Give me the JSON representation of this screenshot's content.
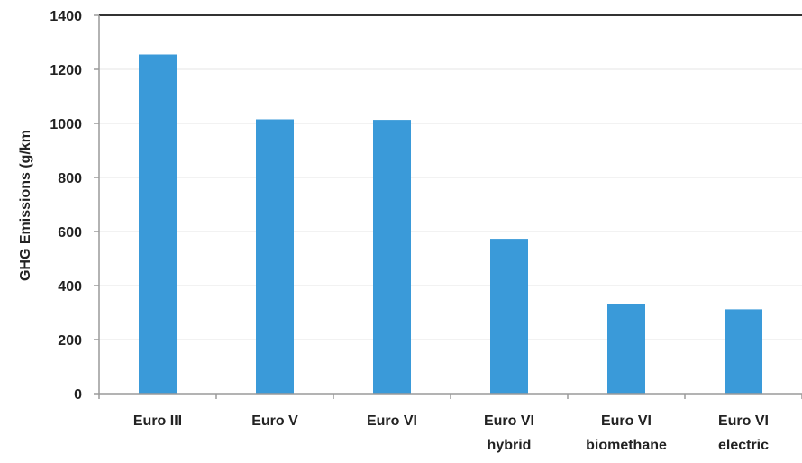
{
  "chart_data": {
    "type": "bar",
    "categories": [
      [
        "Euro III"
      ],
      [
        "Euro V"
      ],
      [
        "Euro VI"
      ],
      [
        "Euro VI",
        "hybrid"
      ],
      [
        "Euro VI",
        "biomethane"
      ],
      [
        "Euro VI",
        "electric"
      ]
    ],
    "values": [
      1255,
      1015,
      1013,
      573,
      330,
      312
    ],
    "title": "",
    "xlabel": "",
    "ylabel": "GHG Emissions (g/km",
    "ylim": [
      0,
      1400
    ],
    "yticks": [
      "0",
      "200",
      "400",
      "600",
      "800",
      "1000",
      "1200",
      "1400"
    ],
    "grid": true,
    "legend": "none",
    "colors": {
      "bar": "#3a9ad9",
      "grid": "#e4e4e4",
      "axis": "#9a9a9a",
      "top_border": "#333333"
    }
  }
}
